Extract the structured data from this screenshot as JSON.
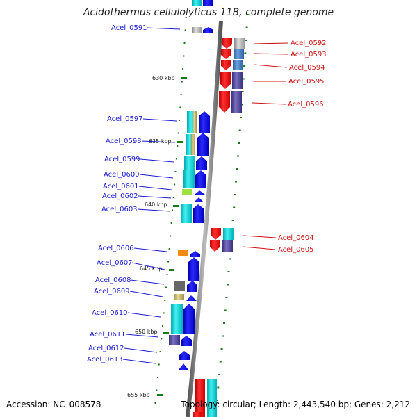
{
  "title": "Acidothermus cellulolyticus 11B, complete genome",
  "footer": {
    "accession": "Accession: NC_008578",
    "topology": "Topology: circular; Length: 2,443,540 bp; Genes: 2,212"
  },
  "kbp_markers": [
    {
      "label": "630 kbp"
    },
    {
      "label": "635 kbp"
    },
    {
      "label": "640 kbp"
    },
    {
      "label": "645 kbp"
    },
    {
      "label": "650 kbp"
    },
    {
      "label": "655 kbp"
    }
  ],
  "genes_left": [
    {
      "name": "Acel_0591"
    },
    {
      "name": "Acel_0597"
    },
    {
      "name": "Acel_0598"
    },
    {
      "name": "Acel_0599"
    },
    {
      "name": "Acel_0600"
    },
    {
      "name": "Acel_0601"
    },
    {
      "name": "Acel_0602"
    },
    {
      "name": "Acel_0603"
    },
    {
      "name": "Acel_0606"
    },
    {
      "name": "Acel_0607"
    },
    {
      "name": "Acel_0608"
    },
    {
      "name": "Acel_0609"
    },
    {
      "name": "Acel_0610"
    },
    {
      "name": "Acel_0611"
    },
    {
      "name": "Acel_0612"
    },
    {
      "name": "Acel_0613"
    }
  ],
  "genes_right": [
    {
      "name": "Acel_0592"
    },
    {
      "name": "Acel_0593"
    },
    {
      "name": "Acel_0594"
    },
    {
      "name": "Acel_0595"
    },
    {
      "name": "Acel_0596"
    },
    {
      "name": "Acel_0604"
    },
    {
      "name": "Acel_0605"
    }
  ],
  "colors": {
    "backbone": "#7a7a7a",
    "reverse_strand": "#ee1111",
    "forward_strand": "#1a1af0",
    "left_label": "#1a1ad0",
    "right_label": "#cc1111",
    "tick": "#1a7a1a",
    "cog_cyan": "#22d0d8",
    "cog_steelblue": "#4a7fc0",
    "cog_slate": "#5a50a0",
    "cog_gray": "#aaaaaa",
    "cog_orange": "#f08a10",
    "cog_khaki": "#c8b870",
    "cog_lime": "#a0e040",
    "cog_darkgray": "#666666",
    "cog_purple": "#7060c0"
  }
}
